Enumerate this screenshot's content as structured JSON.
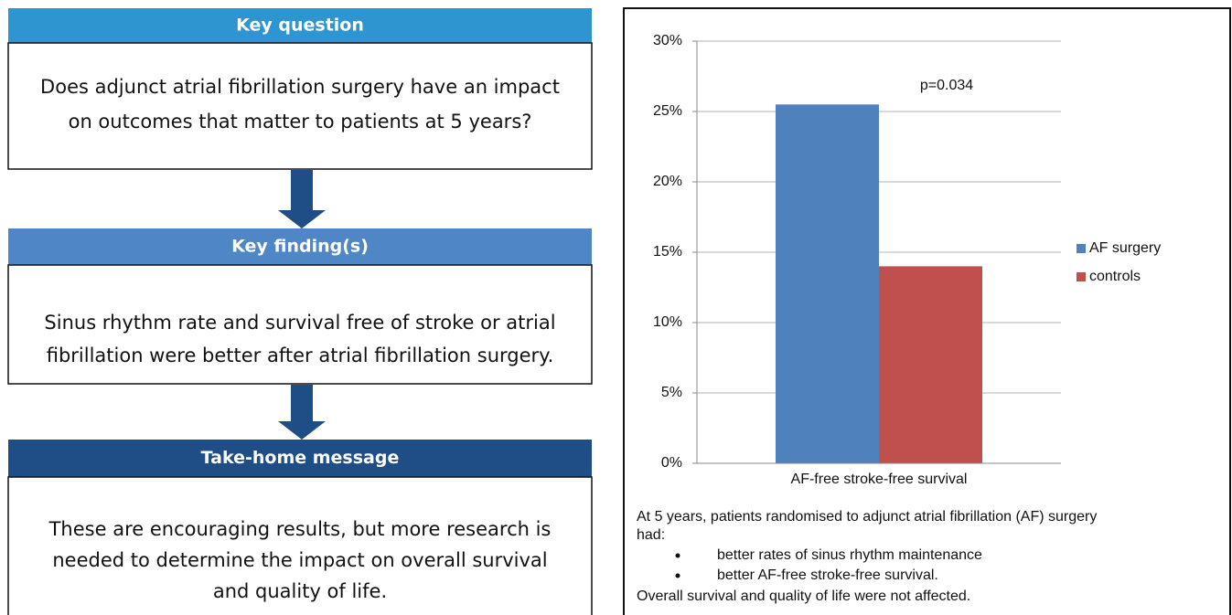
{
  "panels": [
    {
      "heading": "Key question",
      "lines": [
        "Does adjunct atrial fibrillation surgery have an impact",
        "on outcomes that matter to patients at 5 years?"
      ]
    },
    {
      "heading": "Key finding(s)",
      "lines": [
        "Sinus rhythm rate and survival free of stroke or atrial",
        "fibrillation were better after atrial fibrillation surgery."
      ]
    },
    {
      "heading": "Take-home message",
      "lines": [
        "These are encouraging results, but more research is",
        "needed to determine the impact on overall survival",
        "and quality of life."
      ]
    }
  ],
  "chart_data": {
    "type": "bar",
    "categories": [
      "AF-free stroke-free survival"
    ],
    "series": [
      {
        "name": "AF surgery",
        "color": "#4f81bd",
        "values": [
          25.5
        ]
      },
      {
        "name": "controls",
        "color": "#c0504d",
        "values": [
          14
        ]
      }
    ],
    "ylim": [
      0,
      30
    ],
    "yticks": [
      {
        "value": 0,
        "label": "0%"
      },
      {
        "value": 5,
        "label": "5%"
      },
      {
        "value": 10,
        "label": "10%"
      },
      {
        "value": 15,
        "label": "15%"
      },
      {
        "value": 20,
        "label": "20%"
      },
      {
        "value": 25,
        "label": "25%"
      },
      {
        "value": 30,
        "label": "30%"
      }
    ],
    "grid": true,
    "legend": "right",
    "annotation": "p=0.034"
  },
  "caption": {
    "intro": [
      "At 5 years, patients randomised to adjunct atrial fibrillation (AF) surgery",
      "had:"
    ],
    "bullets": [
      "better rates of sinus rhythm maintenance",
      "better AF-free stroke-free survival."
    ],
    "outro": "Overall survival and quality of life were not affected."
  }
}
